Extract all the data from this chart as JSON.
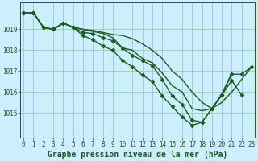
{
  "title": "Graphe pression niveau de la mer (hPa)",
  "background_color": "#cceeff",
  "grid_color": "#99ccbb",
  "line_color": "#1a5c1a",
  "marker": "D",
  "marker_size": 2.5,
  "series": [
    {
      "x": [
        0,
        1,
        2,
        3,
        4,
        5,
        6,
        7,
        8,
        9,
        10,
        11,
        12,
        13,
        14,
        15,
        16,
        17,
        18,
        19,
        20,
        21
      ],
      "y": [
        1019.8,
        1019.8,
        1019.1,
        1019.0,
        1019.3,
        1019.1,
        1019.0,
        1018.9,
        1018.8,
        1018.6,
        1018.1,
        1018.0,
        1017.6,
        1017.4,
        1016.9,
        1016.3,
        1016.0,
        1015.2,
        1015.1,
        1015.2,
        1015.9,
        1016.9
      ],
      "has_markers": false,
      "linewidth": 1.0
    },
    {
      "x": [
        0,
        1,
        2,
        3,
        4,
        5,
        6,
        7,
        8,
        9,
        10,
        11,
        12,
        13,
        14,
        15,
        16,
        17,
        18,
        19,
        20,
        21,
        22,
        23
      ],
      "y": [
        1019.8,
        1019.8,
        1019.1,
        1019.0,
        1019.3,
        1019.1,
        1018.85,
        1018.8,
        1018.6,
        1018.45,
        1018.1,
        1017.75,
        1017.5,
        1017.25,
        1016.6,
        1015.8,
        1015.4,
        1014.65,
        1014.55,
        1015.2,
        1015.85,
        1016.85,
        1016.85,
        1017.2
      ],
      "has_markers": true,
      "linewidth": 1.0
    },
    {
      "x": [
        0,
        1,
        2,
        3,
        4,
        5,
        6,
        7,
        8,
        9,
        10,
        11,
        12,
        13,
        14,
        15,
        16,
        17,
        18,
        19,
        20,
        21,
        22,
        23
      ],
      "y": [
        1019.8,
        1019.8,
        1019.1,
        1019.0,
        1019.3,
        1019.1,
        1019.0,
        1018.95,
        1018.85,
        1018.75,
        1018.7,
        1018.55,
        1018.3,
        1018.0,
        1017.6,
        1017.0,
        1016.6,
        1016.0,
        1015.5,
        1015.2,
        1015.5,
        1016.0,
        1016.6,
        1017.2
      ],
      "has_markers": false,
      "linewidth": 1.0
    },
    {
      "x": [
        0,
        1,
        2,
        3,
        4,
        5,
        6,
        7,
        8,
        9,
        10,
        11,
        12,
        13,
        14,
        15,
        16,
        17,
        18,
        19,
        20,
        21,
        22,
        23
      ],
      "y": [
        1019.8,
        1019.8,
        1019.1,
        1019.0,
        1019.3,
        1019.1,
        1018.7,
        1018.5,
        1018.2,
        1018.0,
        1017.5,
        1017.2,
        1016.8,
        1016.5,
        1015.8,
        1015.3,
        1014.8,
        1014.4,
        1014.55,
        1015.2,
        1015.85,
        1016.55,
        1015.85,
        null
      ],
      "has_markers": true,
      "linewidth": 1.0
    }
  ],
  "ylabel_ticks": [
    1015,
    1016,
    1017,
    1018,
    1019
  ],
  "ylim": [
    1013.8,
    1020.3
  ],
  "xlim": [
    -0.3,
    23.3
  ],
  "title_fontsize": 7.0,
  "tick_fontsize": 5.5,
  "title_color": "#1a5c1a"
}
